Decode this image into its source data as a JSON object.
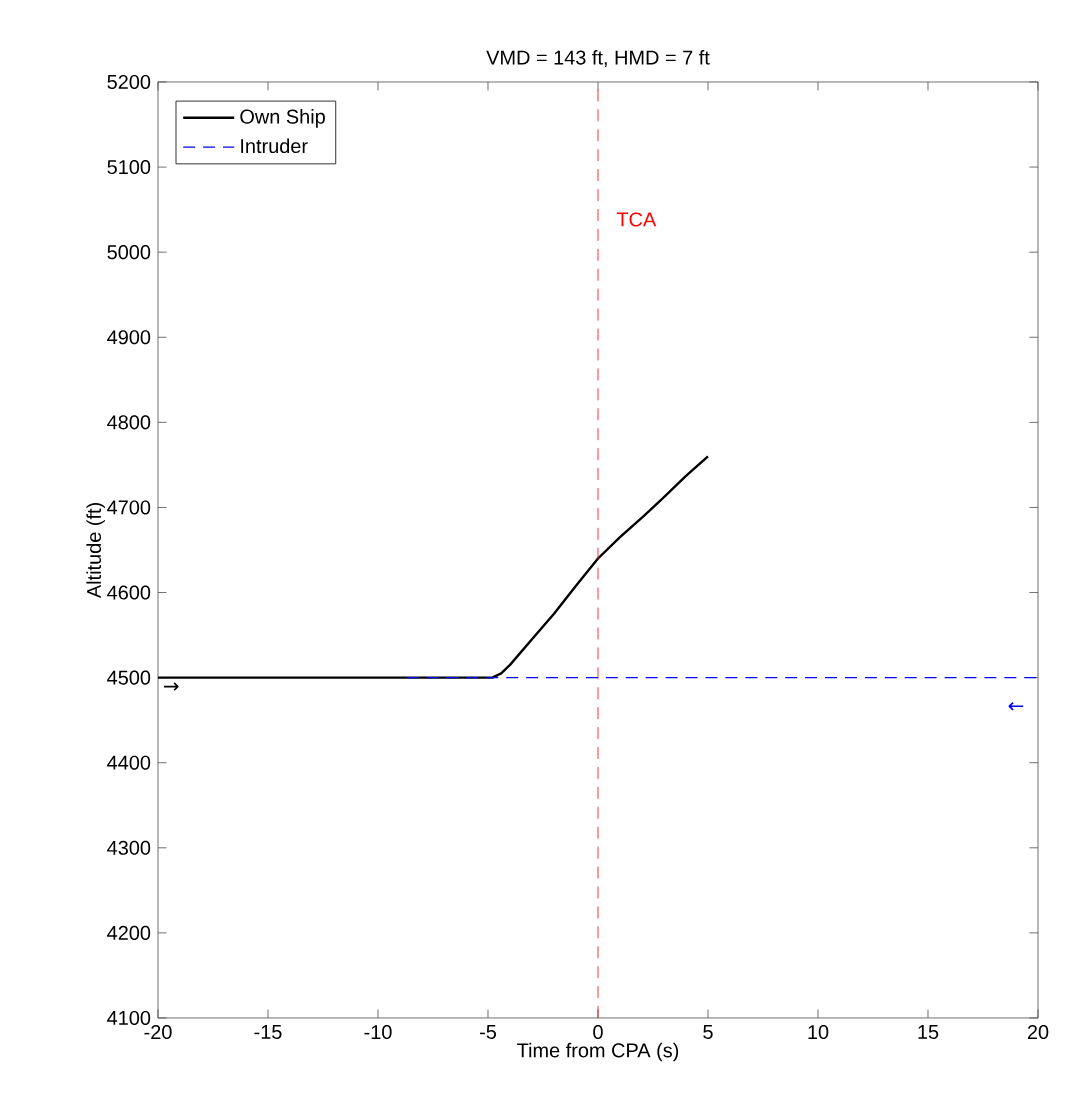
{
  "chart_data": {
    "type": "line",
    "title": "VMD = 143 ft, HMD = 7 ft",
    "xlabel": "Time from CPA (s)",
    "ylabel": "Altitude (ft)",
    "xlim": [
      -20,
      20
    ],
    "ylim": [
      4100,
      5200
    ],
    "xticks": [
      -20,
      -15,
      -10,
      -5,
      0,
      5,
      10,
      15,
      20
    ],
    "yticks": [
      4100,
      4200,
      4300,
      4400,
      4500,
      4600,
      4700,
      4800,
      4900,
      5000,
      5100,
      5200
    ],
    "series": [
      {
        "name": "Own Ship",
        "color": "#000000",
        "line_style": "solid",
        "x": [
          -20,
          -4.8,
          -4.4,
          -4,
          -3,
          -2,
          -1,
          0,
          1,
          2,
          3,
          4,
          5
        ],
        "values": [
          4500,
          4500,
          4505,
          4515,
          4545,
          4575,
          4608,
          4640,
          4665,
          4688,
          4712,
          4737,
          4760
        ]
      },
      {
        "name": "Intruder",
        "color": "#0000ff",
        "line_style": "dashed",
        "x": [
          -8.7,
          20
        ],
        "values": [
          4500,
          4500
        ]
      }
    ],
    "ref_lines": [
      {
        "axis": "x",
        "value": 0,
        "label": "TCA",
        "color": "#ff0000",
        "line_style": "dashed"
      }
    ],
    "annotations": [
      "→",
      "←"
    ],
    "legend": "top left",
    "grid": false
  }
}
